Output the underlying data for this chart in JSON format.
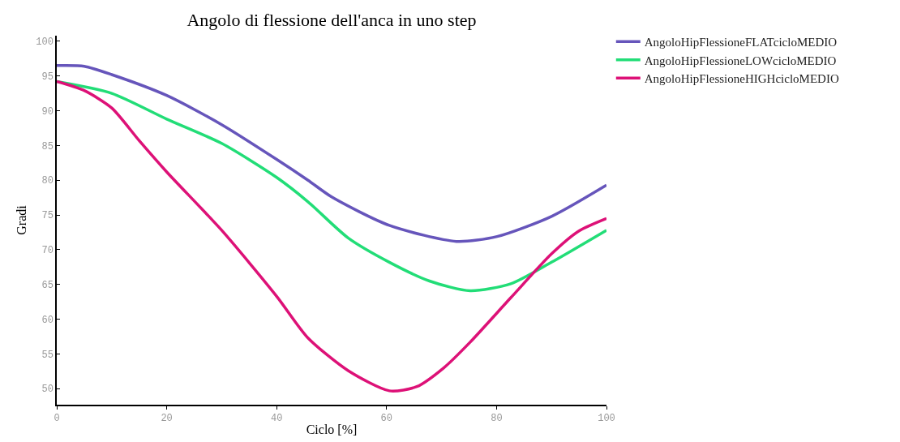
{
  "chart_data": {
    "type": "line",
    "title": "Angolo di flessione dell'anca in uno step",
    "xlabel": "Ciclo [%]",
    "ylabel": "Gradi",
    "xlim": [
      0,
      100
    ],
    "xticks": [
      0,
      20,
      40,
      60,
      80,
      100
    ],
    "ylim": [
      47.7,
      100.8
    ],
    "yticks": [
      50,
      55,
      60,
      65,
      70,
      75,
      80,
      85,
      90,
      95,
      100
    ],
    "grid": false,
    "legend": "top right",
    "marker": "none",
    "line_style": "solid",
    "series": [
      {
        "name": "AngoloHipFlessioneFLATcicloMEDIO",
        "color": "#6655bb",
        "x": [
          0,
          5,
          10,
          20,
          30,
          40,
          45.7,
          50,
          60.5,
          72.7,
          80.1,
          90,
          100
        ],
        "values": [
          96.5,
          96.4,
          95.2,
          92.2,
          88.0,
          83.0,
          80.0,
          77.6,
          73.5,
          71.2,
          71.9,
          74.8,
          79.3
        ]
      },
      {
        "name": "AngoloHipFlessioneLOWcicloMEDIO",
        "color": "#22dd77",
        "x": [
          0,
          10,
          20,
          30,
          40,
          45.7,
          53,
          60.5,
          67.8,
          75.2,
          82.6,
          90,
          100
        ],
        "values": [
          94.2,
          92.5,
          88.8,
          85.3,
          80.4,
          76.9,
          71.7,
          68.2,
          65.5,
          64.1,
          65.1,
          68.2,
          72.8
        ]
      },
      {
        "name": "AngoloHipFlessioneHIGHcicloMEDIO",
        "color": "#dd1177",
        "x": [
          0,
          5,
          10,
          15,
          20,
          30,
          40,
          45.7,
          53,
          60.5,
          65.5,
          70.4,
          75.2,
          82.6,
          90,
          95,
          100
        ],
        "values": [
          94.2,
          92.9,
          90.4,
          85.7,
          81.2,
          72.8,
          63.3,
          57.3,
          52.6,
          49.7,
          50.3,
          53.0,
          56.7,
          63.1,
          69.4,
          72.7,
          74.5
        ]
      }
    ]
  }
}
